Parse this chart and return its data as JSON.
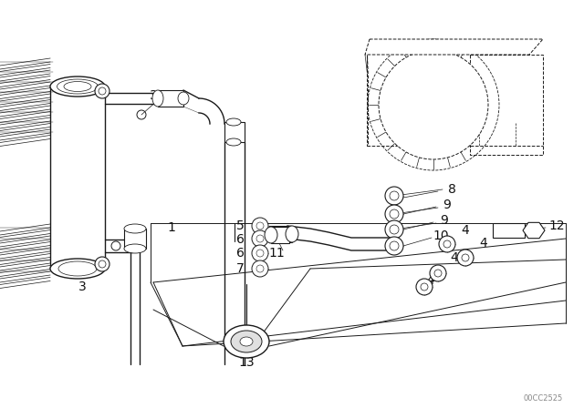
{
  "bg_color": "#ffffff",
  "line_color": "#1a1a1a",
  "text_color": "#111111",
  "watermark": "00CC2525",
  "figsize": [
    6.4,
    4.48
  ],
  "dpi": 100
}
